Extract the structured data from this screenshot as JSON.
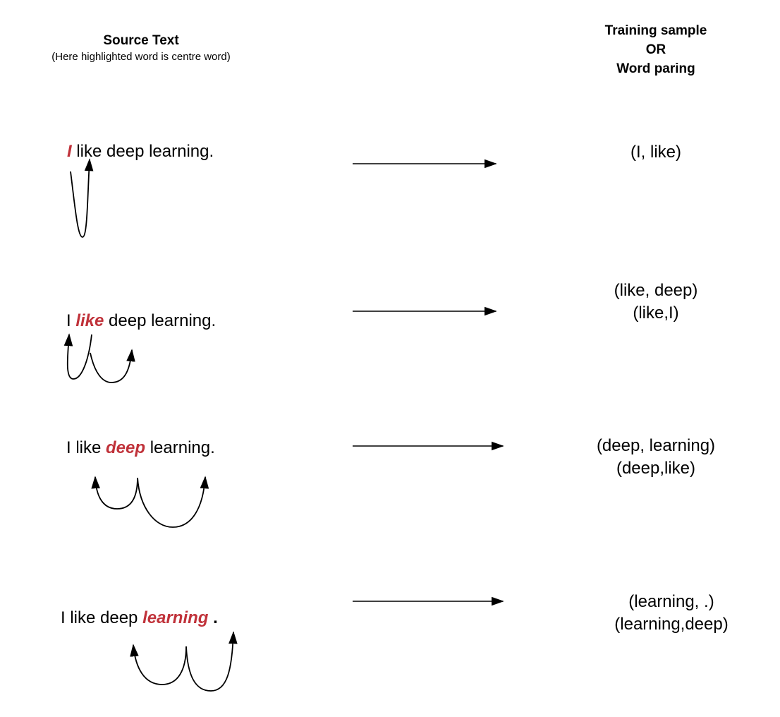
{
  "headers": {
    "left_title": "Source Text",
    "left_subtitle": "(Here highlighted word is centre word)",
    "right_line1": "Training sample",
    "right_line2": "OR",
    "right_line3": "Word paring"
  },
  "rows": [
    {
      "before": "",
      "center": "I",
      "after": " like deep learning.",
      "trailing": "",
      "pairs": [
        "(I, like)"
      ]
    },
    {
      "before": "I ",
      "center": "like",
      "after": " deep learning.",
      "trailing": "",
      "pairs": [
        "(like, deep)",
        "(like,I)"
      ]
    },
    {
      "before": "I like ",
      "center": "deep",
      "after": " learning.",
      "trailing": "",
      "pairs": [
        "(deep, learning)",
        "(deep,like)"
      ]
    },
    {
      "before": "I like deep ",
      "center": "learning",
      "after": " ",
      "trailing": ".",
      "pairs": [
        "(learning, .)",
        "(learning,deep)"
      ]
    }
  ],
  "colors": {
    "highlight": "#c0323a",
    "arrow": "#000000"
  }
}
